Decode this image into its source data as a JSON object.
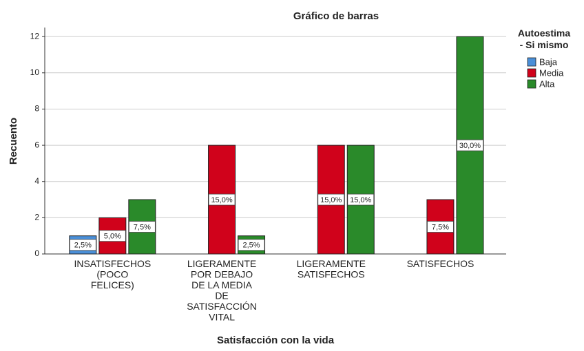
{
  "chart_data": {
    "type": "bar",
    "title": "Gráfico de barras",
    "x_label": "Satisfacción con la vida",
    "y_label": "Recuento",
    "categories": [
      "INSATISFECHOS\n(POCO\nFELICES)",
      "LIGERAMENTE\nPOR DEBAJO\nDE LA MEDIA\nDE\nSATISFACCIÓN\nVITAL",
      "LIGERAMENTE\nSATISFECHOS",
      "SATISFECHOS"
    ],
    "legend_title": "Autoestima\n- Si mismo",
    "legend": "right",
    "series": [
      {
        "name": "Baja",
        "color": "#4a8fd8",
        "values": [
          1,
          null,
          null,
          null
        ],
        "value_labels": [
          "2,5%",
          null,
          null,
          null
        ]
      },
      {
        "name": "Media",
        "color": "#d0021b",
        "values": [
          2,
          6,
          6,
          3
        ],
        "value_labels": [
          "5,0%",
          "15,0%",
          "15,0%",
          "7,5%"
        ]
      },
      {
        "name": "Alta",
        "color": "#2a8a2a",
        "values": [
          3,
          1,
          6,
          12
        ],
        "value_labels": [
          "7,5%",
          "2,5%",
          "15,0%",
          "30,0%"
        ]
      }
    ],
    "ylim": [
      0,
      12.5
    ],
    "yticks": [
      0,
      2,
      4,
      6,
      8,
      10,
      12
    ],
    "grid": true
  }
}
